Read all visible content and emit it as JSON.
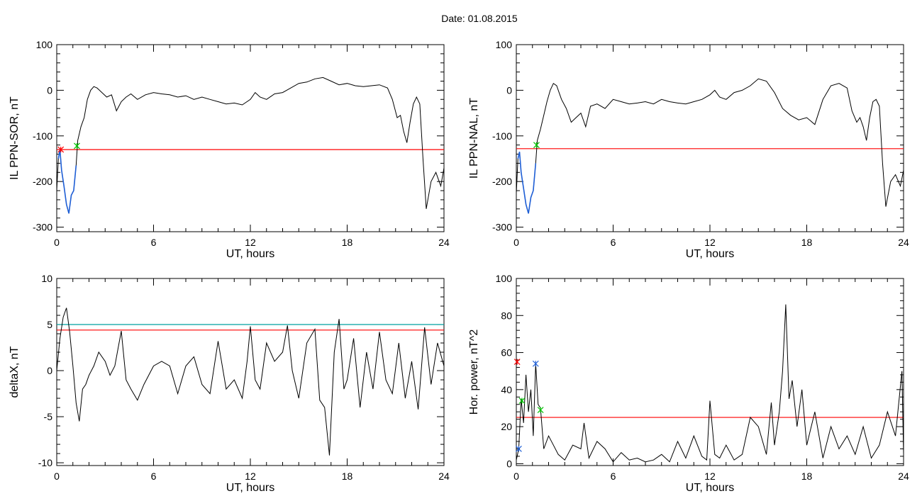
{
  "title": "Date:  01.08.2015",
  "colors": {
    "threshold": "#ff0000",
    "threshold2": "#00a0a0",
    "highlight": "#1f5fd6",
    "series": "#000000",
    "start_marker": "#ff0000",
    "end_marker": "#00c000",
    "peak_marker": "#1f5fd6"
  },
  "chart_data": [
    {
      "type": "line",
      "xlabel": "UT, hours",
      "ylabel": "IL PPN-SOR, nT",
      "xlim": [
        0,
        24
      ],
      "ylim": [
        -310,
        100
      ],
      "xticks": [
        0,
        6,
        12,
        18,
        24
      ],
      "yticks": [
        -300,
        -200,
        -100,
        0,
        100
      ],
      "threshold": -130,
      "highlight_range": [
        0.05,
        1.25
      ],
      "markers": [
        {
          "x": 0.25,
          "y": -130,
          "role": "start"
        },
        {
          "x": 1.25,
          "y": -122,
          "role": "end"
        }
      ],
      "x": [
        0,
        0.1,
        0.2,
        0.3,
        0.45,
        0.6,
        0.75,
        0.9,
        1.05,
        1.2,
        1.3,
        1.5,
        1.7,
        1.9,
        2.1,
        2.3,
        2.5,
        2.8,
        3.1,
        3.4,
        3.7,
        4.0,
        4.3,
        4.6,
        5.0,
        5.5,
        6,
        6.5,
        7,
        7.5,
        8,
        8.5,
        9,
        9.5,
        10,
        10.5,
        11,
        11.5,
        12,
        12.3,
        12.6,
        13,
        13.5,
        14,
        14.5,
        15,
        15.5,
        16,
        16.5,
        17,
        17.5,
        18,
        18.5,
        19,
        19.5,
        20,
        20.5,
        20.8,
        21.1,
        21.3,
        21.5,
        21.7,
        21.9,
        22.1,
        22.3,
        22.5,
        22.7,
        22.9,
        23.2,
        23.5,
        23.8,
        24
      ],
      "y": [
        -220,
        -150,
        -130,
        -175,
        -210,
        -250,
        -270,
        -230,
        -220,
        -165,
        -110,
        -80,
        -60,
        -20,
        0,
        8,
        5,
        -5,
        -15,
        -10,
        -45,
        -25,
        -15,
        -8,
        -20,
        -10,
        -5,
        -8,
        -10,
        -15,
        -12,
        -20,
        -15,
        -20,
        -25,
        -30,
        -28,
        -32,
        -20,
        -5,
        -15,
        -20,
        -8,
        -5,
        5,
        15,
        18,
        25,
        28,
        20,
        12,
        15,
        10,
        8,
        10,
        12,
        5,
        -20,
        -60,
        -55,
        -90,
        -115,
        -70,
        -30,
        -15,
        -30,
        -150,
        -260,
        -200,
        -180,
        -210,
        -170
      ]
    },
    {
      "type": "line",
      "xlabel": "UT, hours",
      "ylabel": "IL PPN-NAL, nT",
      "xlim": [
        0,
        24
      ],
      "ylim": [
        -310,
        100
      ],
      "xticks": [
        0,
        6,
        12,
        18,
        24
      ],
      "yticks": [
        -300,
        -200,
        -100,
        0,
        100
      ],
      "threshold": -128,
      "highlight_range": [
        0.05,
        1.25
      ],
      "markers": [
        {
          "x": 1.25,
          "y": -120,
          "role": "end"
        }
      ],
      "x": [
        0,
        0.1,
        0.2,
        0.3,
        0.45,
        0.6,
        0.75,
        0.9,
        1.05,
        1.2,
        1.3,
        1.5,
        1.7,
        1.9,
        2.1,
        2.3,
        2.5,
        2.8,
        3.1,
        3.4,
        3.7,
        4.0,
        4.3,
        4.6,
        5.0,
        5.5,
        6,
        6.5,
        7,
        7.5,
        8,
        8.5,
        9,
        9.5,
        10,
        10.5,
        11,
        11.5,
        12,
        12.3,
        12.6,
        13,
        13.5,
        14,
        14.5,
        15,
        15.5,
        16,
        16.5,
        17,
        17.5,
        18,
        18.5,
        19,
        19.5,
        20,
        20.5,
        20.8,
        21.1,
        21.3,
        21.5,
        21.7,
        21.9,
        22.1,
        22.3,
        22.5,
        22.7,
        22.9,
        23.2,
        23.5,
        23.8,
        24
      ],
      "y": [
        -225,
        -150,
        -135,
        -180,
        -215,
        -250,
        -270,
        -235,
        -220,
        -160,
        -110,
        -85,
        -55,
        -25,
        0,
        15,
        10,
        -20,
        -40,
        -70,
        -60,
        -50,
        -80,
        -35,
        -30,
        -40,
        -20,
        -25,
        -30,
        -28,
        -25,
        -30,
        -20,
        -25,
        -28,
        -30,
        -25,
        -20,
        -10,
        0,
        -15,
        -20,
        -5,
        0,
        10,
        25,
        20,
        -5,
        -40,
        -55,
        -65,
        -60,
        -75,
        -20,
        10,
        15,
        5,
        -45,
        -70,
        -60,
        -80,
        -110,
        -60,
        -25,
        -20,
        -35,
        -160,
        -255,
        -200,
        -185,
        -210,
        -175
      ]
    },
    {
      "type": "line",
      "xlabel": "UT, hours",
      "ylabel": "deltaX, nT",
      "xlim": [
        0,
        24
      ],
      "ylim": [
        -10.3,
        10
      ],
      "xticks": [
        0,
        6,
        12,
        18,
        24
      ],
      "yticks": [
        -10,
        -5,
        0,
        5,
        10
      ],
      "threshold": 4.4,
      "threshold2": 5.0,
      "x": [
        0,
        0.2,
        0.4,
        0.6,
        0.8,
        1.0,
        1.2,
        1.4,
        1.6,
        1.8,
        2.0,
        2.3,
        2.6,
        3.0,
        3.3,
        3.6,
        4.0,
        4.3,
        4.6,
        5.0,
        5.4,
        6.0,
        6.5,
        7.0,
        7.5,
        8.0,
        8.5,
        9.0,
        9.5,
        10.0,
        10.5,
        11.0,
        11.5,
        11.8,
        12.0,
        12.3,
        12.6,
        13.0,
        13.5,
        14.0,
        14.3,
        14.6,
        15.0,
        15.5,
        16.0,
        16.3,
        16.6,
        16.9,
        17.2,
        17.5,
        17.8,
        18.0,
        18.4,
        18.8,
        19.2,
        19.6,
        20.0,
        20.4,
        20.8,
        21.2,
        21.6,
        22.0,
        22.4,
        22.8,
        23.2,
        23.6,
        24
      ],
      "y": [
        0,
        3.5,
        5.8,
        6.8,
        4.2,
        0.5,
        -3.5,
        -5.5,
        -2,
        -1.5,
        -0.5,
        0.5,
        2,
        1,
        -0.5,
        0.5,
        4.3,
        -1,
        -2,
        -3.2,
        -1.5,
        0.5,
        1,
        0.5,
        -2.5,
        0.5,
        1.5,
        -1.5,
        -2.5,
        3.2,
        -2,
        -1,
        -3,
        1,
        4.8,
        -1,
        -2,
        3,
        1,
        2,
        4.9,
        0,
        -3,
        3,
        4.5,
        -3.2,
        -4,
        -9.2,
        2,
        5.6,
        -2,
        -1,
        3.5,
        -4,
        2,
        -2,
        4.2,
        -1,
        -2.5,
        3,
        -3,
        1,
        -4.2,
        4.7,
        -1.5,
        3,
        0.5
      ]
    },
    {
      "type": "line",
      "xlabel": "UT, hours",
      "ylabel": "Hor. power, nT^2",
      "xlim": [
        0,
        24
      ],
      "ylim": [
        -1,
        100
      ],
      "xticks": [
        0,
        6,
        12,
        18,
        24
      ],
      "yticks": [
        0,
        20,
        40,
        60,
        80,
        100
      ],
      "threshold": 25,
      "markers": [
        {
          "x": 0.05,
          "y": 55,
          "role": "start"
        },
        {
          "x": 0.35,
          "y": 34,
          "role": "end"
        },
        {
          "x": 1.2,
          "y": 54,
          "role": "peak"
        },
        {
          "x": 1.5,
          "y": 29,
          "role": "end"
        },
        {
          "x": 0.15,
          "y": 8,
          "role": "peak"
        }
      ],
      "x": [
        0,
        0.15,
        0.3,
        0.45,
        0.6,
        0.75,
        0.9,
        1.05,
        1.2,
        1.35,
        1.5,
        1.7,
        2.0,
        2.3,
        2.6,
        3.0,
        3.5,
        4.0,
        4.2,
        4.5,
        5.0,
        5.5,
        6.0,
        6.5,
        7.0,
        7.5,
        8.0,
        8.5,
        9.0,
        9.5,
        10.0,
        10.5,
        11.0,
        11.5,
        11.8,
        12.0,
        12.3,
        12.6,
        13.0,
        13.5,
        14.0,
        14.5,
        15.0,
        15.5,
        15.8,
        16.0,
        16.3,
        16.5,
        16.7,
        16.9,
        17.1,
        17.4,
        17.7,
        18.0,
        18.5,
        19.0,
        19.5,
        20.0,
        20.5,
        21.0,
        21.5,
        22.0,
        22.5,
        23.0,
        23.5,
        23.9,
        24
      ],
      "y": [
        2,
        8,
        35,
        22,
        48,
        28,
        40,
        15,
        54,
        32,
        30,
        8,
        15,
        10,
        5,
        2,
        10,
        8,
        22,
        3,
        12,
        8,
        1,
        6,
        2,
        3,
        1,
        2,
        5,
        1,
        12,
        3,
        15,
        4,
        2,
        34,
        5,
        3,
        10,
        2,
        5,
        25,
        20,
        5,
        33,
        10,
        28,
        50,
        86,
        35,
        45,
        20,
        40,
        10,
        28,
        3,
        20,
        8,
        15,
        5,
        20,
        3,
        10,
        28,
        15,
        50,
        5
      ]
    }
  ]
}
